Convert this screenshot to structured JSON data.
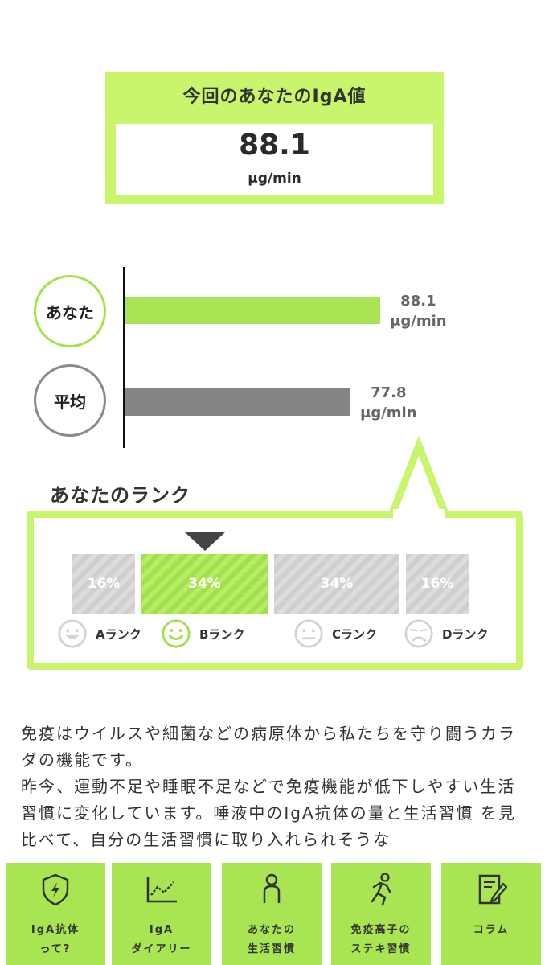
{
  "result": {
    "title": "今回のあなたのIgA値",
    "value": "88.1",
    "unit": "μg/min"
  },
  "comparison": {
    "you_label": "あなた",
    "avg_label": "平均",
    "you_value": 88.1,
    "avg_value": 77.8,
    "you_value_text": "88.1",
    "avg_value_text": "77.8",
    "unit": "μg/min",
    "colors": {
      "you": "#a8e453",
      "avg": "#858585"
    }
  },
  "rank": {
    "heading": "あなたのランク",
    "segments": [
      {
        "pct": "16%",
        "share": 16,
        "active": false
      },
      {
        "pct": "34%",
        "share": 34,
        "active": true
      },
      {
        "pct": "34%",
        "share": 34,
        "active": false
      },
      {
        "pct": "16%",
        "share": 16,
        "active": false
      }
    ],
    "items": [
      {
        "label": "Aランク",
        "face": "big-smile-face-icon",
        "active": false
      },
      {
        "label": "Bランク",
        "face": "smile-face-icon",
        "active": true
      },
      {
        "label": "Cランク",
        "face": "neutral-face-icon",
        "active": false
      },
      {
        "label": "Dランク",
        "face": "sad-face-icon",
        "active": false
      }
    ]
  },
  "body": {
    "p1": "免疫はウイルスや細菌などの病原体から私たちを守り闘うカラダの機能です。",
    "p2": "昨今、運動不足や睡眠不足などで免疫機能が低下しやすい生活習慣に変化しています。唾液中のIgA抗体の量と生活習慣 を見比べて、自分の生活習慣に取り入れられそうな"
  },
  "nav": [
    {
      "label": "IgA抗体\nって?",
      "icon": "shield-bolt-icon"
    },
    {
      "label": "IgA\nダイアリー",
      "icon": "line-chart-icon"
    },
    {
      "label": "あなたの\n生活習慣",
      "icon": "person-icon"
    },
    {
      "label": "免疫高子の\nステキ習慣",
      "icon": "running-person-icon"
    },
    {
      "label": "コラム",
      "icon": "notebook-pen-icon"
    }
  ]
}
